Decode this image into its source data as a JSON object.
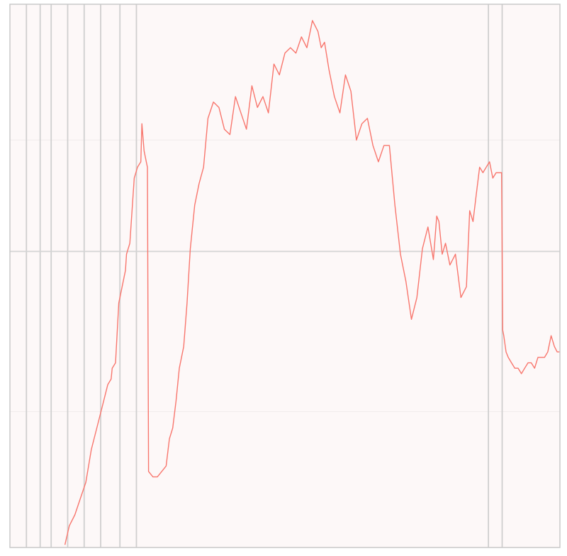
{
  "chart_data": {
    "type": "line",
    "title": "",
    "xlabel": "",
    "ylabel": "",
    "xlim": [
      0,
      1000
    ],
    "ylim": [
      0,
      100
    ],
    "grid": true,
    "legend": "none",
    "x_gridlines": [
      30,
      55,
      75,
      105,
      135,
      165,
      200,
      230,
      870,
      895
    ],
    "y_gridlines": [
      54.5
    ],
    "colors": {
      "series": "#f8766d",
      "plot_background": "#fdf8f8",
      "gridline": "#cfcfcf",
      "frame": "#c9c9c9"
    },
    "series": [
      {
        "x": [
          100,
          108,
          118,
          128,
          138,
          148,
          158,
          168,
          178,
          184,
          186,
          192,
          198,
          204,
          210,
          212,
          218,
          226,
          232,
          238,
          240,
          244,
          248,
          250,
          252,
          260,
          268,
          276,
          284,
          290,
          296,
          302,
          308,
          316,
          322,
          328,
          336,
          344,
          352,
          360,
          370,
          380,
          390,
          400,
          410,
          420,
          430,
          440,
          450,
          460,
          470,
          480,
          490,
          500,
          510,
          520,
          530,
          540,
          550,
          560,
          566,
          572,
          580,
          590,
          600,
          610,
          620,
          630,
          640,
          650,
          660,
          670,
          680,
          690,
          700,
          710,
          720,
          730,
          740,
          750,
          760,
          770,
          776,
          780,
          786,
          792,
          800,
          810,
          820,
          830,
          836,
          842,
          848,
          854,
          860,
          866,
          872,
          878,
          884,
          890,
          894,
          896,
          898,
          902,
          906,
          912,
          918,
          924,
          930,
          936,
          942,
          948,
          954,
          960,
          966,
          972,
          978,
          984,
          990,
          995,
          1000
        ],
        "values": [
          0.5,
          4,
          6,
          9,
          12,
          18,
          22,
          26,
          30,
          31,
          33,
          34,
          45,
          48,
          51,
          54,
          56,
          68,
          70,
          71,
          78,
          73,
          71,
          70,
          14,
          13,
          13,
          14,
          15,
          20,
          22,
          27,
          33,
          37,
          45,
          55,
          63,
          67,
          70,
          79,
          82,
          81,
          77,
          76,
          83,
          80,
          77,
          85,
          81,
          83,
          80,
          89,
          87,
          91,
          92,
          91,
          94,
          92,
          97,
          95,
          92,
          93,
          88,
          83,
          80,
          87,
          84,
          75,
          78,
          79,
          74,
          71,
          74,
          74,
          63,
          54,
          49,
          42,
          46,
          55,
          59,
          53,
          61,
          60,
          54,
          56,
          52,
          54,
          46,
          48,
          62,
          60,
          65,
          70,
          69,
          70,
          71,
          68,
          69,
          69,
          69,
          40,
          39,
          36,
          35,
          34,
          33,
          33,
          32,
          33,
          34,
          34,
          33,
          35,
          35,
          35,
          36,
          39,
          37,
          36,
          36
        ]
      }
    ]
  }
}
